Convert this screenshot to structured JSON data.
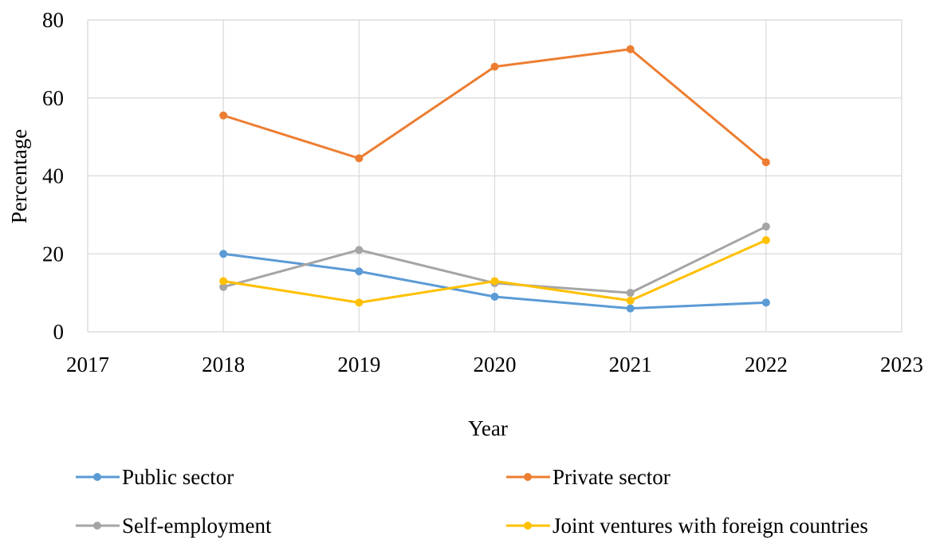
{
  "chart_data": {
    "type": "line",
    "title": "",
    "xlabel": "Year",
    "ylabel": "Percentage",
    "x": [
      2018,
      2019,
      2020,
      2021,
      2022
    ],
    "xlim": [
      2017,
      2023
    ],
    "xticks": [
      "2017",
      "2018",
      "2019",
      "2020",
      "2021",
      "2022",
      "2023"
    ],
    "ylim": [
      0,
      80
    ],
    "yticks": [
      "0",
      "20",
      "40",
      "60",
      "80"
    ],
    "grid": true,
    "legend_position": "bottom",
    "series": [
      {
        "name": "Public sector",
        "color": "#5B9BD5",
        "values": [
          20,
          15.5,
          9,
          6,
          7.5
        ]
      },
      {
        "name": "Private sector",
        "color": "#ED7D31",
        "values": [
          55.5,
          44.5,
          68,
          72.5,
          43.5
        ]
      },
      {
        "name": "Self-employment",
        "color": "#A5A5A5",
        "values": [
          11.5,
          21,
          12.5,
          10,
          27
        ]
      },
      {
        "name": "Joint ventures with foreign countries",
        "color": "#FFC000",
        "values": [
          13,
          7.5,
          13,
          8,
          23.5
        ]
      }
    ]
  }
}
